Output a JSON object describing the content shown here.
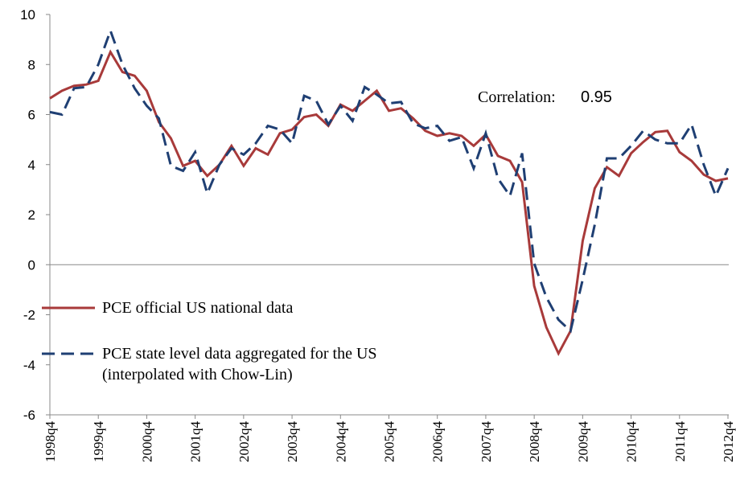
{
  "chart_data": {
    "type": "line",
    "annotation": {
      "label": "Correlation:",
      "value": "0.95"
    },
    "categories": [
      "1998q4",
      null,
      null,
      null,
      "1999q4",
      null,
      null,
      null,
      "2000q4",
      null,
      null,
      null,
      "2001q4",
      null,
      null,
      null,
      "2002q4",
      null,
      null,
      null,
      "2003q4",
      null,
      null,
      null,
      "2004q4",
      null,
      null,
      null,
      "2005q4",
      null,
      null,
      null,
      "2006q4",
      null,
      null,
      null,
      "2007q4",
      null,
      null,
      null,
      "2008q4",
      null,
      null,
      null,
      "2009q4",
      null,
      null,
      null,
      "2010q4",
      null,
      null,
      null,
      "2011q4",
      null,
      null,
      null,
      "2012q4"
    ],
    "series": [
      {
        "name": "PCE official US national data",
        "color": "#a83a3a",
        "dash": false,
        "values": [
          6.65,
          6.95,
          7.15,
          7.2,
          7.35,
          8.5,
          7.7,
          7.55,
          6.95,
          5.7,
          5.05,
          3.95,
          4.15,
          3.55,
          4.0,
          4.75,
          3.95,
          4.65,
          4.4,
          5.25,
          5.4,
          5.9,
          6.0,
          5.55,
          6.4,
          6.15,
          6.55,
          6.95,
          6.15,
          6.25,
          5.85,
          5.35,
          5.15,
          5.25,
          5.15,
          4.75,
          5.2,
          4.35,
          4.15,
          3.3,
          -0.85,
          -2.5,
          -3.55,
          -2.65,
          0.95,
          3.05,
          3.9,
          3.55,
          4.45,
          4.9,
          5.3,
          5.35,
          4.5,
          4.15,
          3.6,
          3.35,
          3.45
        ]
      },
      {
        "name": "PCE state level data aggregated for the US\n(interpolated with Chow-Lin)",
        "color": "#1f3f73",
        "dash": true,
        "values": [
          6.1,
          6.0,
          7.05,
          7.1,
          8.0,
          9.35,
          8.0,
          7.05,
          6.35,
          5.85,
          3.95,
          3.75,
          4.5,
          2.85,
          4.0,
          4.65,
          4.4,
          4.85,
          5.55,
          5.4,
          4.85,
          6.75,
          6.55,
          5.6,
          6.35,
          5.75,
          7.1,
          6.8,
          6.45,
          6.5,
          5.65,
          5.45,
          5.55,
          4.95,
          5.1,
          3.85,
          5.25,
          3.45,
          2.75,
          4.45,
          0.05,
          -1.3,
          -2.2,
          -2.65,
          -0.6,
          1.6,
          4.25,
          4.25,
          4.75,
          5.35,
          5.0,
          4.85,
          4.85,
          5.6,
          4.0,
          2.75,
          3.85
        ]
      }
    ],
    "ylim": [
      -6,
      10
    ],
    "yticks": [
      -6,
      -4,
      -2,
      0,
      2,
      4,
      6,
      8,
      10
    ]
  }
}
